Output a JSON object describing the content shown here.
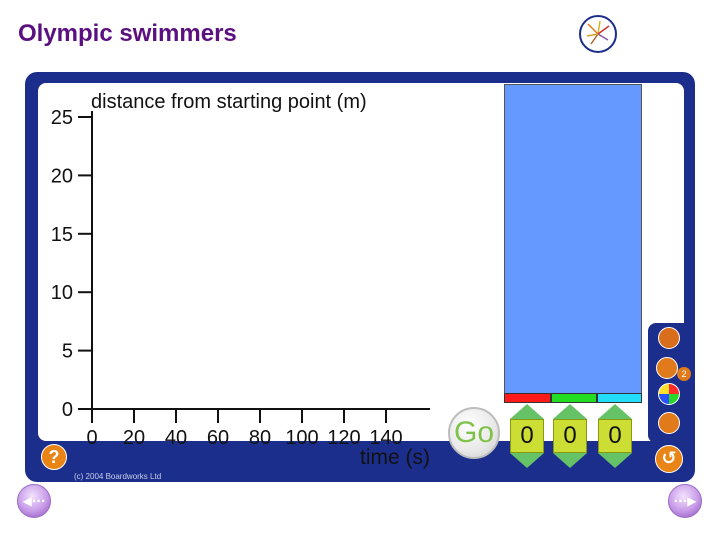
{
  "title": "Olympic swimmers",
  "graph": {
    "ylabel": "distance from starting point (m)",
    "xlabel": "time (s)",
    "yticks": [
      "0",
      "5",
      "10",
      "15",
      "20",
      "25"
    ],
    "xticks": [
      "0",
      "20",
      "40",
      "60",
      "80",
      "100",
      "120",
      "140"
    ]
  },
  "controls": {
    "go_label": "Go",
    "speeds": [
      "0",
      "0",
      "0"
    ]
  },
  "lanes": {
    "colors": [
      "#ff1a1a",
      "#22dd22",
      "#22ddff"
    ],
    "pool_color": "#6699ff"
  },
  "tools": {
    "number_badge": "2",
    "icons": [
      "pen-icon",
      "line-icon",
      "color-wheel-icon",
      "eraser-icon",
      "undo-icon"
    ]
  },
  "help": {
    "label": "?"
  },
  "footer": {
    "copyright": "(c) 2004 Boardworks Ltd"
  },
  "nav": {
    "prev": "◀···",
    "next": "···▶"
  }
}
